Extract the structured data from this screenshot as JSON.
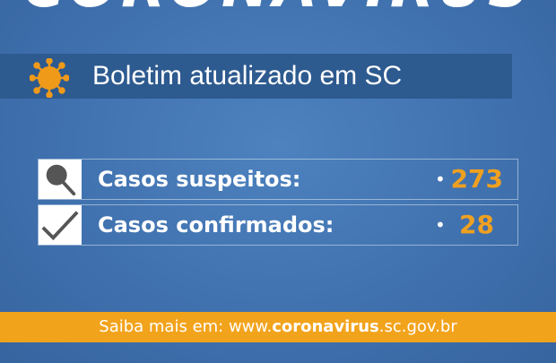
{
  "header": {
    "title": "CORONAVIRUS"
  },
  "banner": {
    "icon": "virus-icon",
    "text": "Boletim atualizado em SC"
  },
  "stats": [
    {
      "icon": "magnifier-icon",
      "label": "Casos suspeitos:",
      "bullet": "•",
      "value": "273"
    },
    {
      "icon": "checkmark-icon",
      "label": "Casos confirmados:",
      "bullet": "•",
      "value": "28"
    }
  ],
  "footer": {
    "prefix": "Saiba mais em: www.",
    "highlight": "coronavirus",
    "suffix": ".sc.gov.br"
  },
  "colors": {
    "background": "#3f70ad",
    "banner": "#2d5a8f",
    "accent": "#f2a31c",
    "value": "#f0a020"
  }
}
